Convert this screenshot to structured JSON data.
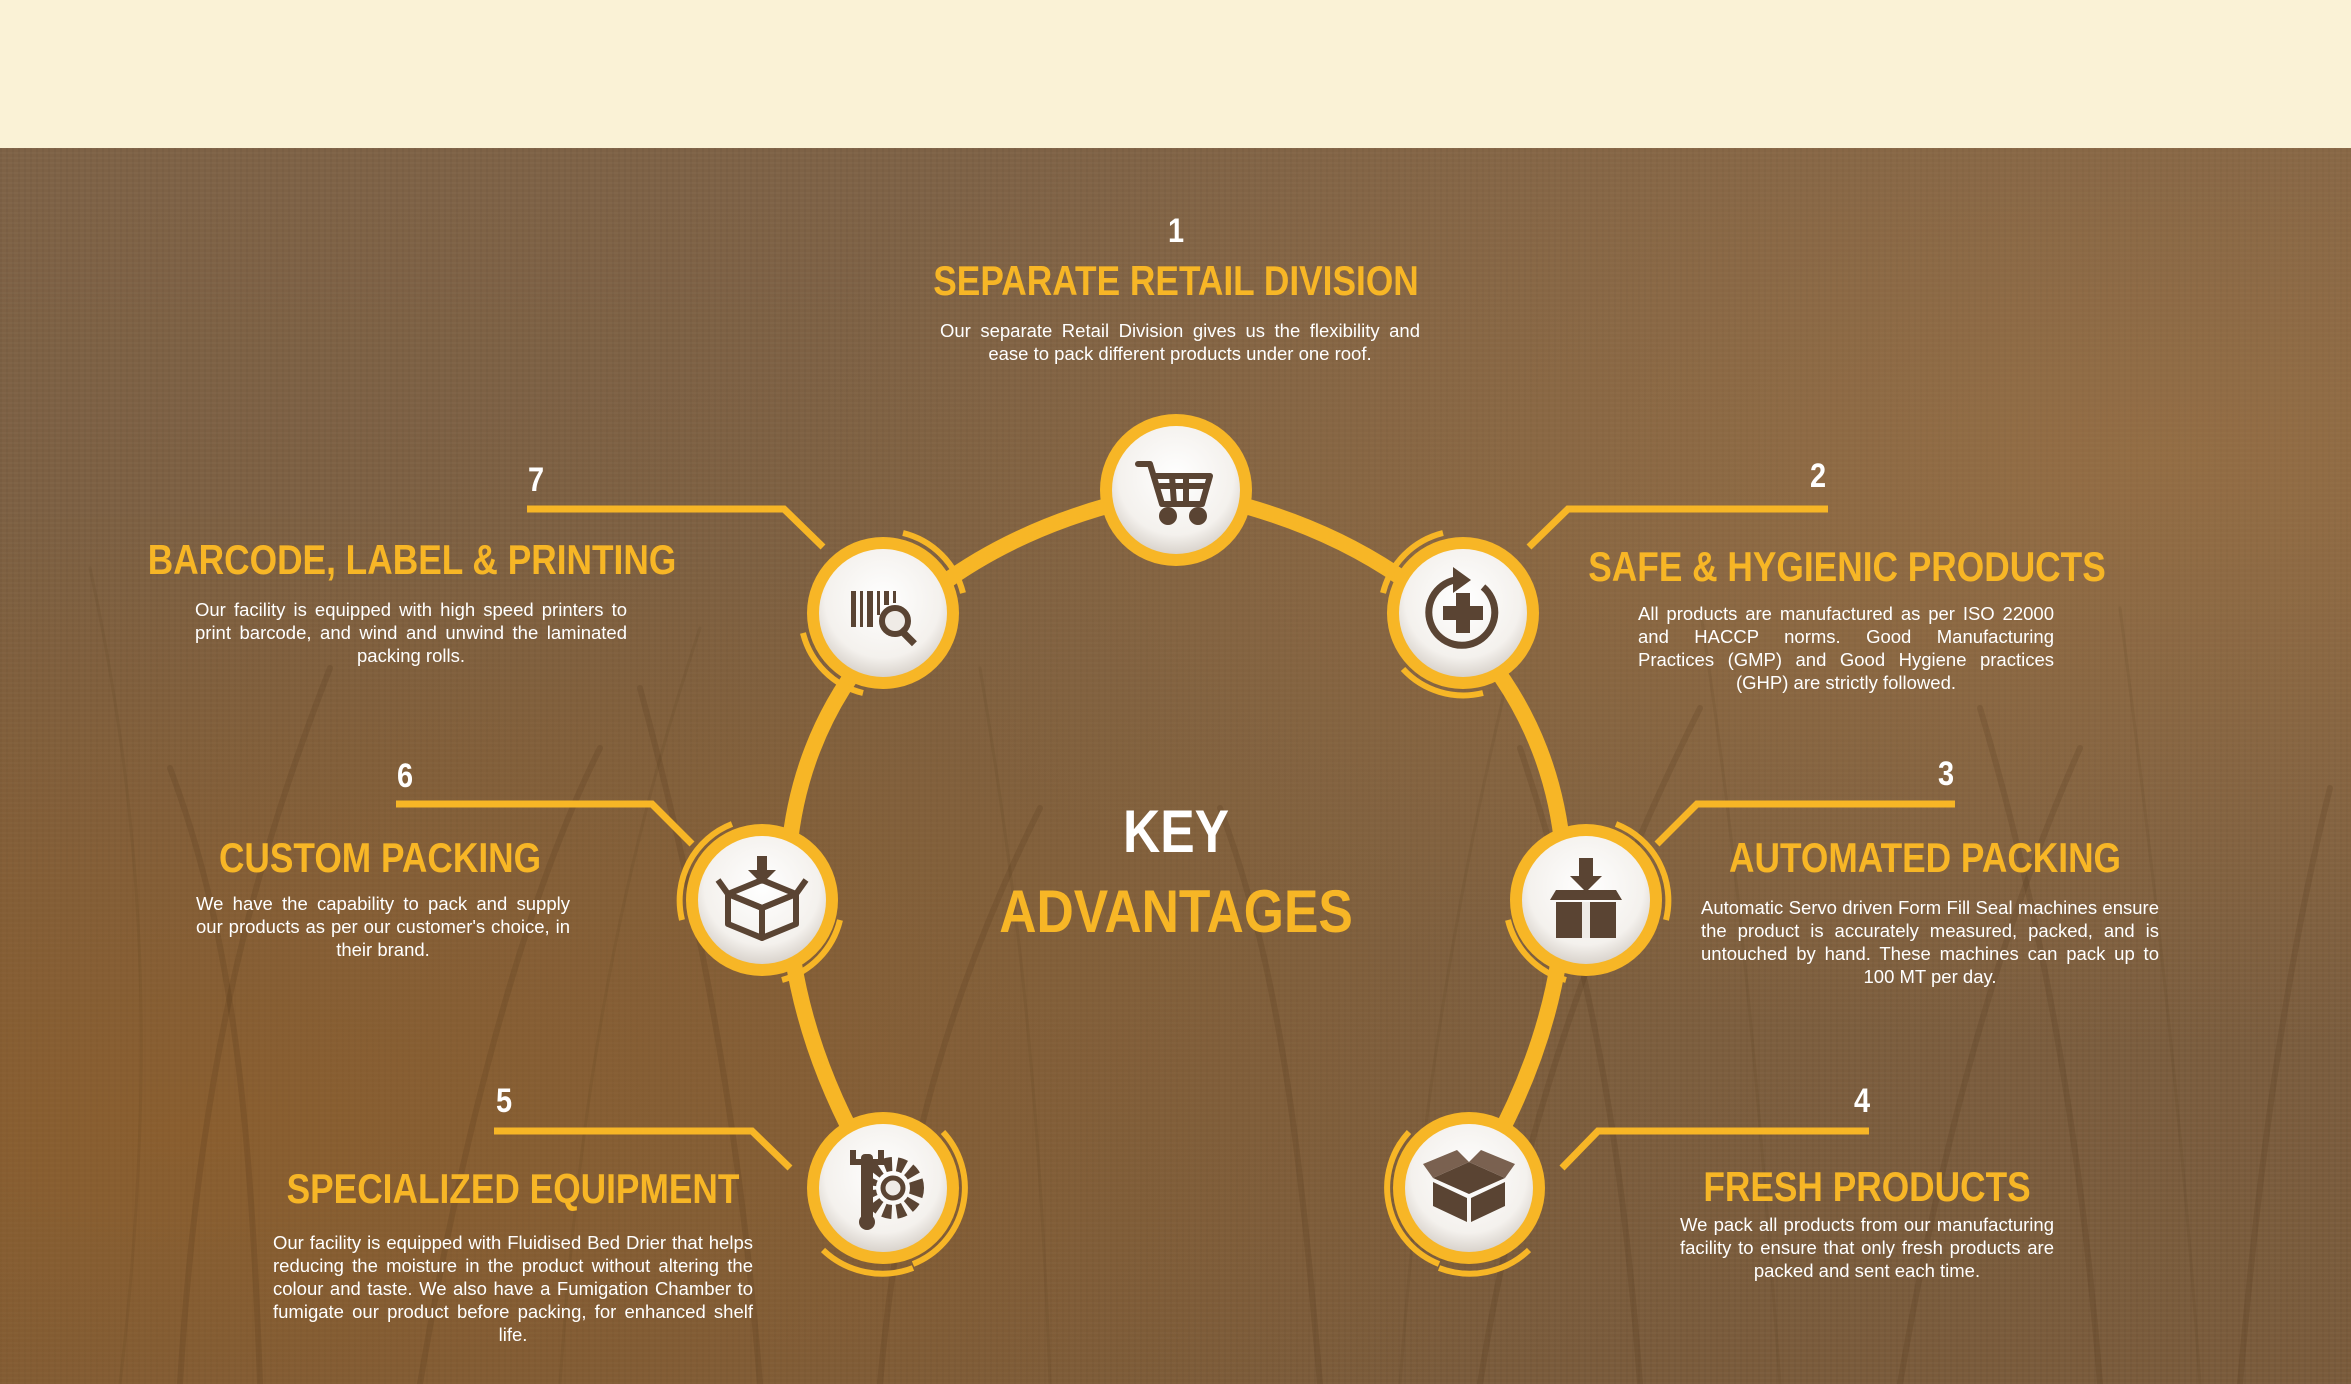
{
  "center": {
    "line1": "KEY",
    "line2": "ADVANTAGES"
  },
  "colors": {
    "accent": "#f7b626",
    "icon": "#5a4433",
    "background": "#7c5f41",
    "top_strip": "#faf2d6"
  },
  "items": [
    {
      "number": "1",
      "title": "SEPARATE RETAIL DIVISION",
      "icon": "shopping-cart-icon",
      "description": "Our separate Retail Division gives us the flexibility and ease to pack different products under one roof."
    },
    {
      "number": "2",
      "title": "SAFE & HYGIENIC PRODUCTS",
      "icon": "hygiene-cross-icon",
      "description": "All products are manufactured as per ISO 22000 and HACCP norms. Good Manufacturing Practices (GMP) and Good Hygiene practices (GHP) are strictly followed."
    },
    {
      "number": "3",
      "title": "AUTOMATED PACKING",
      "icon": "box-packing-icon",
      "description": "Automatic Servo driven Form Fill Seal machines ensure the product is accurately measured, packed, and is untouched by hand. These machines can pack up to 100 MT per day."
    },
    {
      "number": "4",
      "title": "FRESH PRODUCTS",
      "icon": "open-box-icon",
      "description": "We pack all products from our manufacturing facility to ensure that only fresh products are packed and sent each time."
    },
    {
      "number": "5",
      "title": "SPECIALIZED EQUIPMENT",
      "icon": "tools-gear-icon",
      "description": "Our facility is equipped with Fluidised Bed Drier that helps reducing the moisture in the product without altering the colour and taste. We also have a Fumigation Chamber to fumigate our product before packing, for enhanced shelf life."
    },
    {
      "number": "6",
      "title": "CUSTOM PACKING",
      "icon": "custom-box-icon",
      "description": "We have the capability to pack and supply our products as per our customer's choice, in their brand."
    },
    {
      "number": "7",
      "title": "BARCODE, LABEL & PRINTING",
      "icon": "barcode-search-icon",
      "description": "Our facility is equipped with high speed printers to print barcode, and wind and unwind the laminated packing rolls."
    }
  ]
}
